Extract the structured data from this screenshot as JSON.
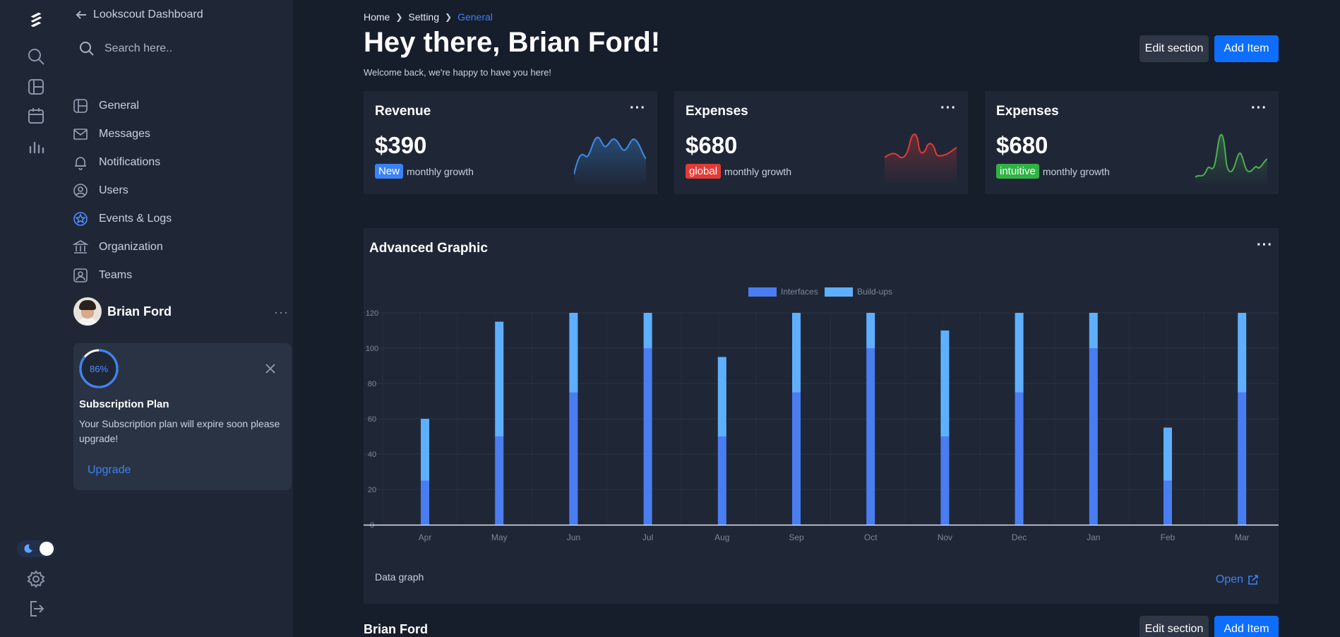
{
  "sidebar": {
    "title": "Lookscout Dashboard",
    "search_placeholder": "Search here..",
    "items": [
      {
        "label": "General",
        "icon": "layout-icon"
      },
      {
        "label": "Messages",
        "icon": "mail-icon"
      },
      {
        "label": "Notifications",
        "icon": "bell-icon"
      },
      {
        "label": "Users",
        "icon": "user-circle-icon"
      },
      {
        "label": "Events & Logs",
        "icon": "star-badge-icon"
      },
      {
        "label": "Organization",
        "icon": "bank-icon"
      },
      {
        "label": "Teams",
        "icon": "team-icon"
      }
    ],
    "profile": {
      "name": "Brian Ford",
      "more": "···"
    },
    "subscription": {
      "percent": 86,
      "percent_label": "86%",
      "title": "Subscription Plan",
      "text": "Your Subscription plan will expire soon please upgrade!",
      "link": "Upgrade"
    }
  },
  "rail": {
    "icons": [
      "logo-icon",
      "search-icon",
      "layout-icon",
      "calendar-icon",
      "bar-chart-icon",
      "settings-icon",
      "logout-icon"
    ]
  },
  "header": {
    "breadcrumb": [
      "Home",
      "Setting",
      "General"
    ],
    "title": "Hey there, Brian Ford!",
    "subtitle": "Welcome back, we're happy to have you here!",
    "edit_label": "Edit section",
    "add_label": "Add Item"
  },
  "stats": [
    {
      "title": "Revenue",
      "value": "$390",
      "badge": "New",
      "badge_color": "#3b82f6",
      "caption": "monthly growth",
      "line_color": "#3b8de6",
      "more": "···"
    },
    {
      "title": "Expenses",
      "value": "$680",
      "badge": "global",
      "badge_color": "#e53935",
      "caption": "monthly growth",
      "line_color": "#e53935",
      "more": "···"
    },
    {
      "title": "Expenses",
      "value": "$680",
      "badge": "intuitive",
      "badge_color": "#2fb344",
      "caption": "monthly growth",
      "line_color": "#4caf50",
      "more": "···"
    }
  ],
  "graph": {
    "title": "Advanced Graphic",
    "more": "···",
    "footer": "Data graph",
    "open_label": "Open"
  },
  "bottom": {
    "name": "Brian Ford",
    "edit_label": "Edit section",
    "add_label": "Add Item"
  },
  "chart_data": {
    "type": "bar",
    "stacked": true,
    "categories": [
      "Apr",
      "May",
      "Jun",
      "Jul",
      "Aug",
      "Sep",
      "Oct",
      "Nov",
      "Dec",
      "Jan",
      "Feb",
      "Mar"
    ],
    "series": [
      {
        "name": "Interfaces",
        "color": "#4a7df0",
        "values": [
          25,
          50,
          75,
          100,
          50,
          75,
          100,
          50,
          75,
          100,
          25,
          75
        ]
      },
      {
        "name": "Build-ups",
        "color": "#5eb0ff",
        "values": [
          35,
          65,
          45,
          20,
          45,
          45,
          20,
          60,
          45,
          20,
          30,
          45
        ]
      }
    ],
    "ylim": [
      0,
      120
    ],
    "yticks": [
      0,
      20,
      40,
      60,
      80,
      100,
      120
    ],
    "grid": true,
    "legend": "top-center"
  }
}
